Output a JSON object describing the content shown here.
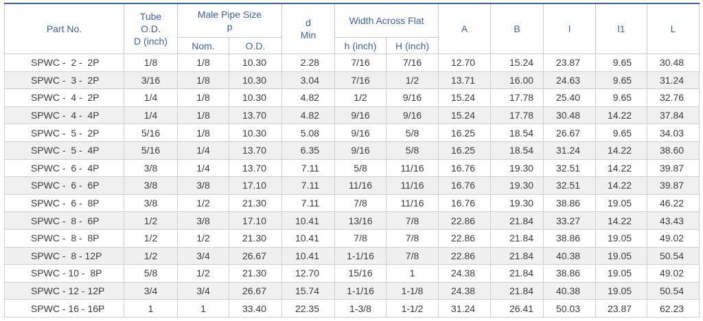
{
  "headers": {
    "part_no": "Part No.",
    "tube_od": [
      "Tube",
      "O.D.",
      "D (inch)"
    ],
    "male_pipe": [
      "Male Pipe Size",
      "p"
    ],
    "nom": "Nom.",
    "od": "O.D.",
    "d_min": [
      "d",
      "Min"
    ],
    "width_across_flat": "Width Across Flat",
    "h_inch": "h (inch)",
    "H_inch": "H (inch)",
    "A": "A",
    "B": "B",
    "l": "l",
    "l1": "l1",
    "L": "L"
  },
  "rows": [
    [
      "SPWC -  2 -  2P",
      "1/8",
      "1/8",
      "10.30",
      "2.28",
      "7/16",
      "7/16",
      "12.70",
      "15.24",
      "23.87",
      "9.65",
      "30.48"
    ],
    [
      "SPWC -  3 -  2P",
      "3/16",
      "1/8",
      "10.30",
      "3.04",
      "7/16",
      "1/2",
      "13.71",
      "16.00",
      "24.63",
      "9.65",
      "31.24"
    ],
    [
      "SPWC -  4 -  2P",
      "1/4",
      "1/8",
      "10.30",
      "4.82",
      "1/2",
      "9/16",
      "15.24",
      "17.78",
      "25.40",
      "9.65",
      "32.76"
    ],
    [
      "SPWC -  4 -  4P",
      "1/4",
      "1/8",
      "13.70",
      "4.82",
      "9/16",
      "9/16",
      "15.24",
      "17.78",
      "30.48",
      "14.22",
      "37.84"
    ],
    [
      "SPWC -  5 -  2P",
      "5/16",
      "1/8",
      "10.30",
      "5.08",
      "9/16",
      "5/8",
      "16.25",
      "18.54",
      "26.67",
      "9.65",
      "34.03"
    ],
    [
      "SPWC -  5 -  4P",
      "5/16",
      "1/4",
      "13.70",
      "6.35",
      "9/16",
      "5/8",
      "16.25",
      "18.54",
      "31.24",
      "14.22",
      "38.60"
    ],
    [
      "SPWC -  6 -  4P",
      "3/8",
      "1/4",
      "13.70",
      "7.11",
      "5/8",
      "11/16",
      "16.76",
      "19.30",
      "32.51",
      "14.22",
      "39.87"
    ],
    [
      "SPWC -  6 -  6P",
      "3/8",
      "3/8",
      "17.10",
      "7.11",
      "11/16",
      "11/16",
      "16.76",
      "19.30",
      "32.51",
      "14.22",
      "39.87"
    ],
    [
      "SPWC -  6 -  8P",
      "3/8",
      "1/2",
      "21.30",
      "7.11",
      "7/8",
      "11/16",
      "16.76",
      "19.30",
      "38.86",
      "19.05",
      "46.22"
    ],
    [
      "SPWC -  8 -  6P",
      "1/2",
      "3/8",
      "17.10",
      "10.41",
      "13/16",
      "7/8",
      "22.86",
      "21.84",
      "33.27",
      "14.22",
      "43.43"
    ],
    [
      "SPWC -  8 -  8P",
      "1/2",
      "1/2",
      "21.30",
      "10.41",
      "7/8",
      "7/8",
      "22.86",
      "21.84",
      "38.86",
      "19.05",
      "49.02"
    ],
    [
      "SPWC -  8 - 12P",
      "1/2",
      "3/4",
      "26.67",
      "10.41",
      "1-1/16",
      "7/8",
      "22.86",
      "21.84",
      "40.38",
      "19.05",
      "50.54"
    ],
    [
      "SPWC - 10 -  8P",
      "5/8",
      "1/2",
      "21.30",
      "12.70",
      "15/16",
      "1",
      "24.38",
      "21.84",
      "38.86",
      "19.05",
      "49.02"
    ],
    [
      "SPWC - 12 - 12P",
      "3/4",
      "3/4",
      "26.67",
      "15.74",
      "1-1/16",
      "1-1/8",
      "24.38",
      "21.84",
      "40.38",
      "19.05",
      "50.54"
    ],
    [
      "SPWC - 16 - 16P",
      "1",
      "1",
      "33.40",
      "22.35",
      "1-3/8",
      "1-1/2",
      "31.24",
      "26.41",
      "50.03",
      "23.87",
      "62.23"
    ]
  ]
}
